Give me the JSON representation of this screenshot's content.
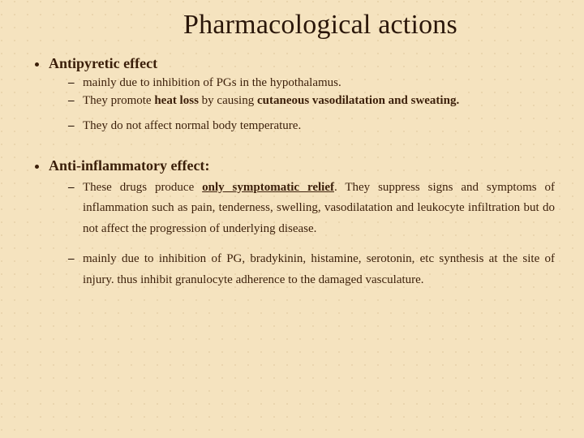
{
  "title": "Pharmacological actions",
  "sections": [
    {
      "heading": "Antipyretic effect",
      "heading_suffix": "",
      "items": [
        {
          "text": "mainly due to inhibition of PGs in the hypothalamus.",
          "gap": false,
          "bold_runs": []
        },
        {
          "text": "They promote heat loss by causing cutaneous vasodilatation and sweating.",
          "gap": false,
          "bold_runs": [
            "heat loss",
            "cutaneous vasodilatation and sweating."
          ]
        },
        {
          "text": "They do not affect normal body temperature.",
          "gap": true,
          "bold_runs": []
        }
      ],
      "spaced": false
    },
    {
      "heading": "Anti-inflammatory effect",
      "heading_suffix": ":",
      "items": [
        {
          "text": "These drugs produce only symptomatic relief. They  suppress signs and symptoms of inflammation such as  pain, tenderness, swelling, vasodilatation and  leukocyte infiltration but do not affect the  progression of underlying disease.",
          "gap": false,
          "ul_runs": [
            "only symptomatic relief"
          ],
          "bold_runs": [
            "only symptomatic relief"
          ]
        },
        {
          "text": "mainly due to inhibition of PG, bradykinin, histamine,  serotonin, etc synthesis at the site of injury. thus  inhibit granulocyte adherence to the damaged vasculature.",
          "gap": true,
          "bold_runs": []
        }
      ],
      "spaced": true
    }
  ],
  "colors": {
    "background": "#f5e3bf",
    "text": "#3b1f0a"
  }
}
